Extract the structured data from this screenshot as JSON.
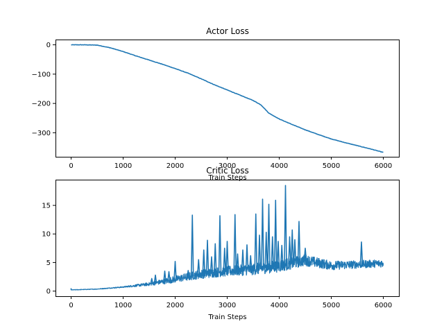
{
  "chart_data": [
    {
      "type": "line",
      "title": "Actor Loss",
      "xlabel": "Train Steps",
      "ylabel": "",
      "xlim": [
        -300,
        6300
      ],
      "ylim": [
        -382,
        18
      ],
      "xticks": [
        0,
        1000,
        2000,
        3000,
        4000,
        5000,
        6000
      ],
      "yticks": [
        0,
        -100,
        -200,
        -300
      ],
      "color": "#1f77b4",
      "grid": false,
      "series": [
        {
          "x": [
            0,
            250,
            500,
            750,
            1000,
            1250,
            1500,
            1750,
            2000,
            2250,
            2500,
            2750,
            3000,
            3250,
            3500,
            3650,
            3800,
            4000,
            4250,
            4500,
            4750,
            5000,
            5250,
            5500,
            5750,
            6000
          ],
          "y": [
            0,
            0,
            -1,
            -10,
            -23,
            -38,
            -52,
            -66,
            -81,
            -97,
            -116,
            -136,
            -154,
            -172,
            -190,
            -205,
            -233,
            -253,
            -272,
            -290,
            -306,
            -321,
            -333,
            -344,
            -355,
            -367
          ]
        }
      ]
    },
    {
      "type": "line",
      "title": "Critic Loss",
      "xlabel": "Train Steps",
      "ylabel": "",
      "xlim": [
        -300,
        6300
      ],
      "ylim": [
        -0.9,
        19.5
      ],
      "xticks": [
        0,
        1000,
        2000,
        3000,
        4000,
        5000,
        6000
      ],
      "yticks": [
        0,
        5,
        10,
        15
      ],
      "color": "#1f77b4",
      "grid": false,
      "series": [
        {
          "x": [
            0,
            500,
            1000,
            1500,
            2000,
            2500,
            3000,
            3500,
            4000,
            4500,
            5000,
            5500,
            6000
          ],
          "y": [
            0.2,
            0.35,
            0.7,
            1.2,
            2.0,
            2.9,
            3.4,
            3.7,
            4.3,
            5.3,
            4.4,
            4.6,
            4.8
          ],
          "band": [
            0.05,
            0.05,
            0.1,
            0.3,
            0.6,
            0.8,
            0.9,
            1.0,
            1.1,
            1.0,
            0.8,
            0.7,
            0.7
          ],
          "spikes": [
            {
              "x": 1550,
              "y": 2.2
            },
            {
              "x": 1620,
              "y": 2.8
            },
            {
              "x": 1800,
              "y": 3.5
            },
            {
              "x": 1880,
              "y": 3.4
            },
            {
              "x": 2000,
              "y": 5.2
            },
            {
              "x": 2250,
              "y": 3.6
            },
            {
              "x": 2330,
              "y": 13.3
            },
            {
              "x": 2450,
              "y": 5.5
            },
            {
              "x": 2550,
              "y": 7.2
            },
            {
              "x": 2620,
              "y": 8.9
            },
            {
              "x": 2700,
              "y": 6.0
            },
            {
              "x": 2770,
              "y": 8.3
            },
            {
              "x": 2860,
              "y": 13.2
            },
            {
              "x": 2950,
              "y": 7.5
            },
            {
              "x": 3000,
              "y": 8.7
            },
            {
              "x": 3150,
              "y": 13.4
            },
            {
              "x": 3200,
              "y": 6.5
            },
            {
              "x": 3300,
              "y": 7.2
            },
            {
              "x": 3380,
              "y": 8.1
            },
            {
              "x": 3450,
              "y": 6.2
            },
            {
              "x": 3550,
              "y": 13.5
            },
            {
              "x": 3620,
              "y": 9.8
            },
            {
              "x": 3680,
              "y": 16.1
            },
            {
              "x": 3750,
              "y": 10.3
            },
            {
              "x": 3800,
              "y": 15.2
            },
            {
              "x": 3870,
              "y": 9.5
            },
            {
              "x": 3930,
              "y": 15.9
            },
            {
              "x": 3980,
              "y": 8.7
            },
            {
              "x": 4050,
              "y": 8.0
            },
            {
              "x": 4120,
              "y": 18.5
            },
            {
              "x": 4200,
              "y": 9.5
            },
            {
              "x": 4250,
              "y": 10.7
            },
            {
              "x": 4300,
              "y": 9.0
            },
            {
              "x": 4380,
              "y": 12.2
            },
            {
              "x": 4500,
              "y": 7.5
            },
            {
              "x": 5580,
              "y": 8.6
            }
          ]
        }
      ]
    }
  ]
}
